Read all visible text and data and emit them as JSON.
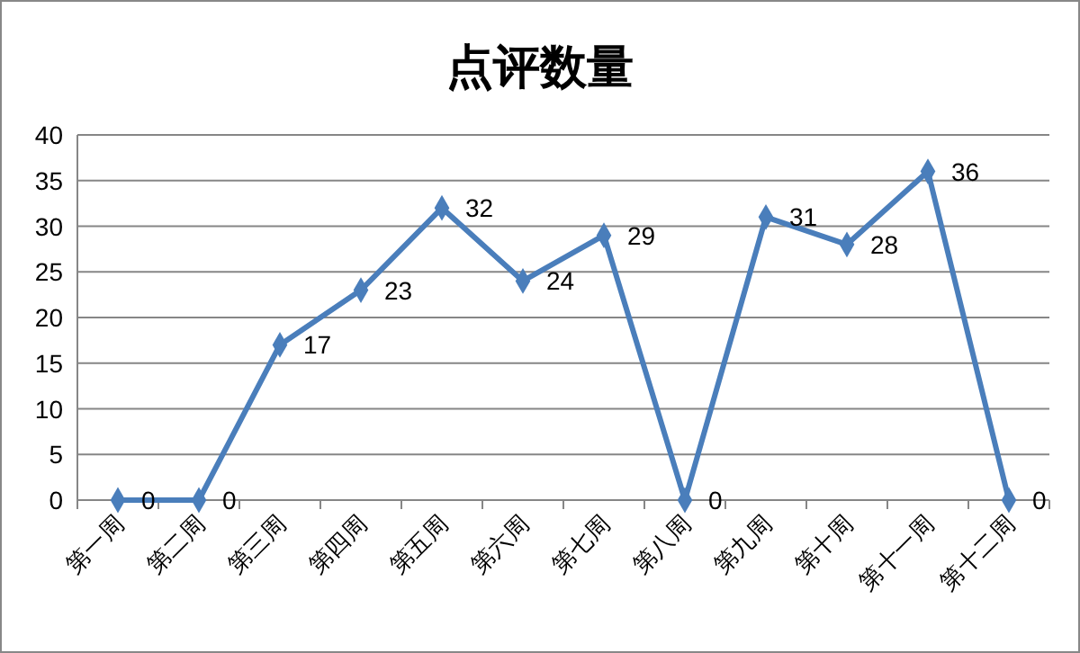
{
  "chart_data": {
    "type": "line",
    "title": "点评数量",
    "categories": [
      "第一周",
      "第二周",
      "第三周",
      "第四周",
      "第五周",
      "第六周",
      "第七周",
      "第八周",
      "第九周",
      "第十周",
      "第十一周",
      "第十二周"
    ],
    "series": [
      {
        "color": "#4a7ebb",
        "values": [
          0,
          0,
          17,
          23,
          32,
          24,
          29,
          0,
          31,
          28,
          36,
          0
        ]
      }
    ],
    "ylim": [
      0,
      40
    ],
    "yticks": [
      0,
      5,
      10,
      15,
      20,
      25,
      30,
      35,
      40
    ],
    "grid": "y",
    "marker": "diamond",
    "line_style": "solid",
    "data_labels": true
  }
}
